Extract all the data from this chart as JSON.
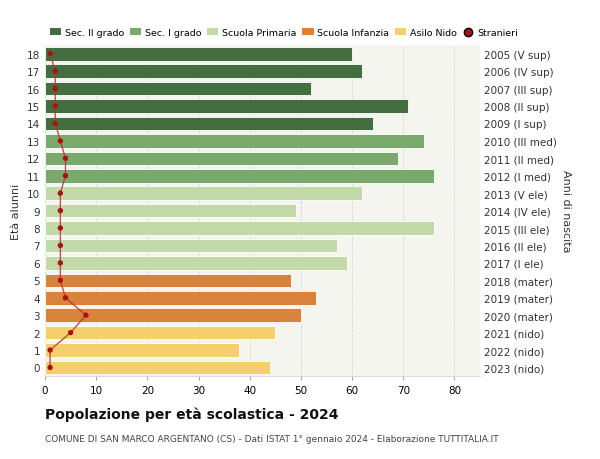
{
  "ages": [
    18,
    17,
    16,
    15,
    14,
    13,
    12,
    11,
    10,
    9,
    8,
    7,
    6,
    5,
    4,
    3,
    2,
    1,
    0
  ],
  "values": [
    60,
    62,
    52,
    71,
    64,
    74,
    69,
    76,
    62,
    49,
    76,
    57,
    59,
    48,
    53,
    50,
    45,
    38,
    44
  ],
  "stranieri": [
    1,
    2,
    2,
    2,
    2,
    3,
    4,
    4,
    3,
    3,
    3,
    3,
    3,
    3,
    4,
    8,
    5,
    1,
    1
  ],
  "years": [
    "2005 (V sup)",
    "2006 (IV sup)",
    "2007 (III sup)",
    "2008 (II sup)",
    "2009 (I sup)",
    "2010 (III med)",
    "2011 (II med)",
    "2012 (I med)",
    "2013 (V ele)",
    "2014 (IV ele)",
    "2015 (III ele)",
    "2016 (II ele)",
    "2017 (I ele)",
    "2018 (mater)",
    "2019 (mater)",
    "2020 (mater)",
    "2021 (nido)",
    "2022 (nido)",
    "2023 (nido)"
  ],
  "bar_colors": [
    "#456e40",
    "#456e40",
    "#456e40",
    "#456e40",
    "#456e40",
    "#7aaa6b",
    "#7aaa6b",
    "#7aaa6b",
    "#c2d9aa",
    "#c2d9aa",
    "#c2d9aa",
    "#c2d9aa",
    "#c2d9aa",
    "#d9823c",
    "#d9823c",
    "#d9823c",
    "#f5cf6e",
    "#f5cf6e",
    "#f5cf6e"
  ],
  "stranieri_dot_color": "#aa1111",
  "stranieri_line_color": "#bb3333",
  "title": "Popolazione per età scolastica - 2024",
  "subtitle": "COMUNE DI SAN MARCO ARGENTANO (CS) - Dati ISTAT 1° gennaio 2024 - Elaborazione TUTTITALIA.IT",
  "ylabel": "Età alunni",
  "ylabel_right": "Anni di nascita",
  "xlim": [
    0,
    85
  ],
  "ylim": [
    -0.5,
    18.5
  ],
  "background_color": "#ffffff",
  "plot_bg_color": "#f5f5f0",
  "xticks": [
    0,
    10,
    20,
    30,
    40,
    50,
    60,
    70,
    80
  ],
  "legend_labels": [
    "Sec. II grado",
    "Sec. I grado",
    "Scuola Primaria",
    "Scuola Infanzia",
    "Asilo Nido",
    "Stranieri"
  ],
  "legend_colors": [
    "#456e40",
    "#7aaa6b",
    "#c2d9aa",
    "#d9823c",
    "#f5cf6e",
    "#aa1111"
  ]
}
